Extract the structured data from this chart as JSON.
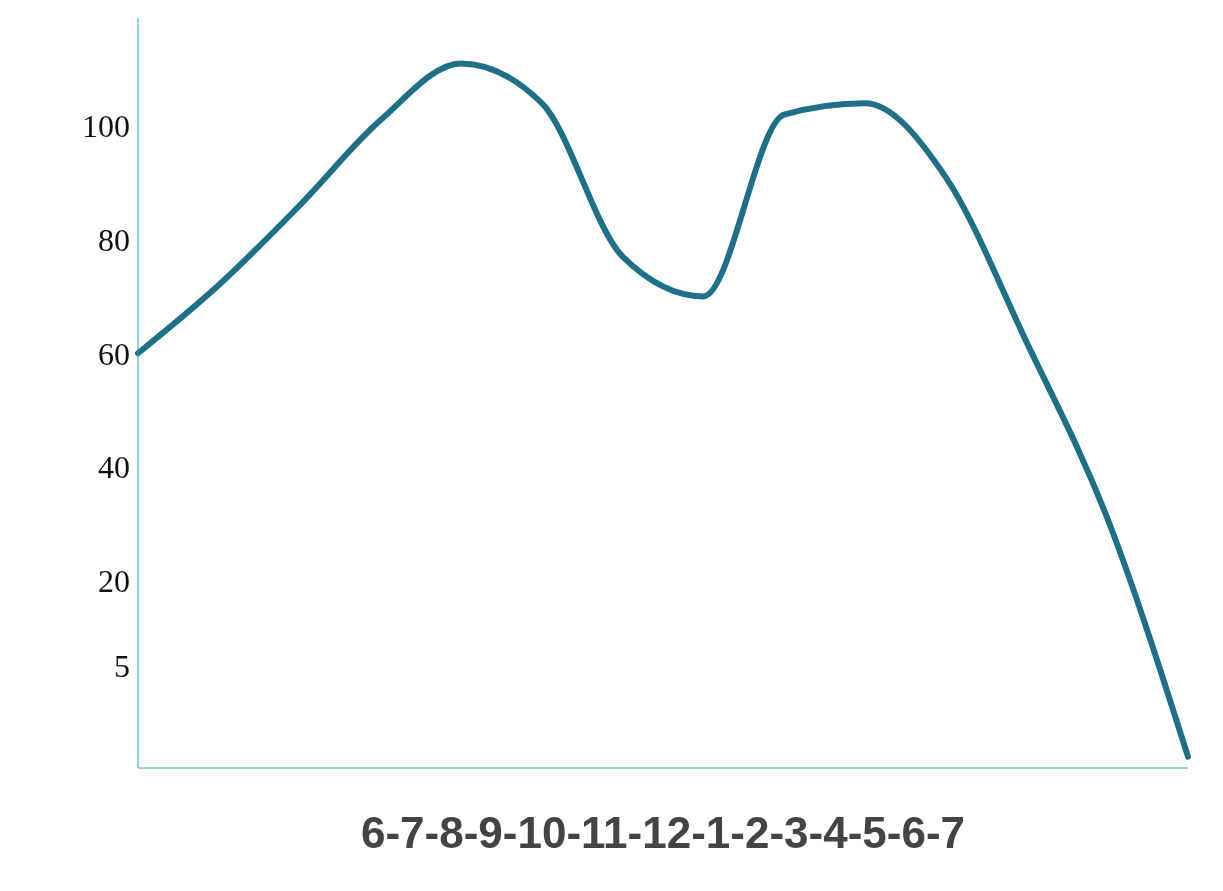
{
  "chart_data": {
    "type": "line",
    "xlabel": "6-7-8-9-10-11-12-1-2-3-4-5-6-7",
    "categories": [
      null,
      null,
      null,
      null,
      null,
      null,
      null,
      null,
      null,
      null,
      null,
      null,
      null,
      null
    ],
    "series": [
      {
        "color": "#1e7088",
        "values": [
          60,
          72,
          86,
          101,
          111,
          104,
          77,
          70,
          102,
          104,
          91,
          62,
          31,
          -11
        ]
      }
    ],
    "ylim": [
      -13,
      119
    ],
    "yticks": [
      5,
      20,
      40,
      60,
      80,
      100
    ],
    "marker": "none",
    "line_style": "solid"
  }
}
